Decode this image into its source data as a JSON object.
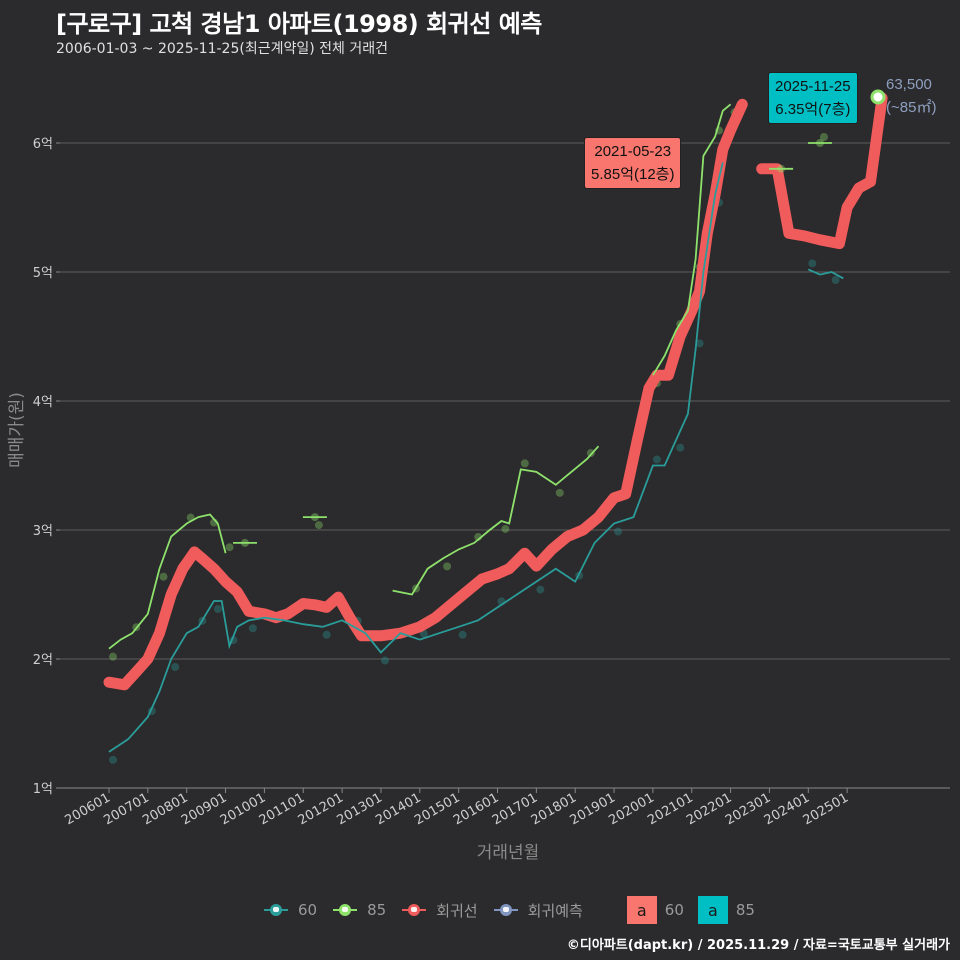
{
  "header": {
    "title": "[구로구] 고척 경남1 아파트(1998) 회귀선 예측",
    "subtitle": "2006-01-03 ~ 2025-11-25(최근계약일) 전체 거래건"
  },
  "axes": {
    "ylabel": "매매가(원)",
    "xlabel": "거래년월",
    "yticks": [
      "1억",
      "2억",
      "3억",
      "4억",
      "5억",
      "6억"
    ],
    "xticks": [
      "200601",
      "200701",
      "200801",
      "200901",
      "201001",
      "201101",
      "201201",
      "201301",
      "201401",
      "201501",
      "201601",
      "201701",
      "201801",
      "201901",
      "202001",
      "202101",
      "202201",
      "202301",
      "202401",
      "202501"
    ]
  },
  "annotations": {
    "peak": {
      "date": "2021-05-23",
      "value": "5.85억(12층)",
      "color": "#f8766d"
    },
    "latest": {
      "date": "2025-11-25",
      "value": "6.35억(7층)",
      "color": "#00bfc4"
    },
    "latest_side": {
      "price": "63,500",
      "area": "(~85㎡)"
    }
  },
  "legend": {
    "items": [
      {
        "label": "60",
        "color": "#2a9d9a"
      },
      {
        "label": "85",
        "color": "#8ee26c"
      },
      {
        "label": "회귀선",
        "color": "#f05b5b"
      },
      {
        "label": "회귀예측",
        "color": "#8095c0"
      }
    ],
    "label_keys": [
      {
        "glyph": "a",
        "label": "60",
        "color": "#f8766d"
      },
      {
        "glyph": "a",
        "label": "85",
        "color": "#00bfc4"
      }
    ]
  },
  "footer": {
    "text": "©디아파트(dapt.kr) / 2025.11.29 / 자료=국토교통부 실거래가"
  },
  "chart_data": {
    "type": "line",
    "title": "[구로구] 고척 경남1 아파트(1998) 회귀선 예측",
    "subtitle": "2006-01-03 ~ 2025-11-25(최근계약일) 전체 거래건",
    "xlabel": "거래년월",
    "ylabel": "매매가(원)",
    "ylim": [
      1.0,
      6.4
    ],
    "y_unit": "억",
    "grid": true,
    "legend_position": "bottom",
    "series": [
      {
        "name": "60",
        "color": "#2a9d9a",
        "x": [
          2006.0,
          2006.5,
          2007.0,
          2007.3,
          2007.6,
          2008.0,
          2008.3,
          2008.5,
          2008.7,
          2008.9,
          2009.1,
          2009.3,
          2009.6,
          2010.0,
          2010.5,
          2011.0,
          2011.5,
          2012.0,
          2012.3,
          2012.6,
          2013.0,
          2013.5,
          2014.0,
          2014.5,
          2015.0,
          2015.5,
          2016.0,
          2016.5,
          2017.0,
          2017.5,
          2018.0,
          2018.5,
          2019.0,
          2019.5,
          2020.0,
          2020.3,
          2020.6,
          2020.9,
          2021.1,
          2021.3,
          2021.6,
          2021.8,
          2024.0,
          2024.3,
          2024.6,
          2024.9
        ],
        "values": [
          1.28,
          1.38,
          1.55,
          1.75,
          2.0,
          2.2,
          2.25,
          2.35,
          2.45,
          2.45,
          2.1,
          2.25,
          2.3,
          2.32,
          2.3,
          2.27,
          2.25,
          2.3,
          2.25,
          2.2,
          2.05,
          2.2,
          2.15,
          2.2,
          2.25,
          2.3,
          2.4,
          2.5,
          2.6,
          2.7,
          2.6,
          2.9,
          3.05,
          3.1,
          3.5,
          3.5,
          3.7,
          3.9,
          4.4,
          5.0,
          5.6,
          5.85,
          5.02,
          4.98,
          5.0,
          4.95
        ]
      },
      {
        "name": "85",
        "color": "#8ee26c",
        "x": [
          2006.0,
          2006.3,
          2006.6,
          2007.0,
          2007.3,
          2007.6,
          2008.0,
          2008.3,
          2008.6,
          2008.8,
          2009.0,
          2009.5,
          2011.3,
          2013.3,
          2013.8,
          2014.2,
          2014.6,
          2015.0,
          2015.4,
          2015.8,
          2016.1,
          2016.3,
          2016.6,
          2017.0,
          2017.5,
          2017.9,
          2018.3,
          2018.6,
          2020.0,
          2020.3,
          2020.6,
          2020.9,
          2021.1,
          2021.3,
          2021.6,
          2021.8,
          2022.0,
          2023.3,
          2024.3
        ],
        "values": [
          2.08,
          2.15,
          2.2,
          2.35,
          2.7,
          2.95,
          3.05,
          3.1,
          3.12,
          3.05,
          2.82,
          2.9,
          3.1,
          2.53,
          2.5,
          2.7,
          2.78,
          2.85,
          2.9,
          3.0,
          3.07,
          3.05,
          3.47,
          3.45,
          3.35,
          3.45,
          3.55,
          3.65,
          4.2,
          4.35,
          4.55,
          4.7,
          5.1,
          5.9,
          6.05,
          6.25,
          6.3,
          5.8,
          6.0
        ]
      },
      {
        "name": "회귀선",
        "color": "#f05b5b",
        "x": [
          2006.0,
          2006.4,
          2006.7,
          2007.0,
          2007.3,
          2007.6,
          2007.9,
          2008.2,
          2008.4,
          2008.7,
          2009.0,
          2009.3,
          2009.6,
          2010.0,
          2010.3,
          2010.6,
          2011.0,
          2011.3,
          2011.6,
          2011.9,
          2012.2,
          2012.5,
          2013.0,
          2013.5,
          2014.0,
          2014.4,
          2014.8,
          2015.2,
          2015.6,
          2016.0,
          2016.3,
          2016.7,
          2017.0,
          2017.4,
          2017.8,
          2018.2,
          2018.6,
          2019.0,
          2019.3,
          2019.6,
          2019.9,
          2020.1,
          2020.4,
          2020.7,
          2021.0,
          2021.2,
          2021.4,
          2021.6,
          2021.8,
          2022.0,
          2022.3,
          2022.8,
          2023.2,
          2023.5,
          2023.9,
          2024.3,
          2024.8,
          2025.0,
          2025.3,
          2025.6,
          2025.9
        ],
        "values": [
          1.82,
          1.8,
          1.9,
          2.0,
          2.2,
          2.5,
          2.7,
          2.83,
          2.78,
          2.7,
          2.6,
          2.52,
          2.37,
          2.35,
          2.32,
          2.35,
          2.43,
          2.42,
          2.4,
          2.48,
          2.32,
          2.18,
          2.18,
          2.2,
          2.25,
          2.32,
          2.42,
          2.52,
          2.62,
          2.66,
          2.7,
          2.82,
          2.72,
          2.85,
          2.95,
          3.0,
          3.1,
          3.25,
          3.28,
          3.7,
          4.1,
          4.2,
          4.2,
          4.5,
          4.7,
          4.85,
          5.3,
          5.6,
          5.95,
          6.1,
          6.3,
          5.8,
          5.8,
          5.3,
          5.28,
          5.25,
          5.22,
          5.5,
          5.65,
          5.7,
          6.35
        ]
      }
    ],
    "annotations": [
      {
        "text": "2021-05-23\n5.85억(12층)",
        "x": 2021.4,
        "y": 5.85
      },
      {
        "text": "2025-11-25\n6.35억(7층)",
        "x": 2025.9,
        "y": 6.35
      },
      {
        "text": "63,500 (~85㎡)",
        "x": 2025.9,
        "y": 6.35
      }
    ]
  }
}
